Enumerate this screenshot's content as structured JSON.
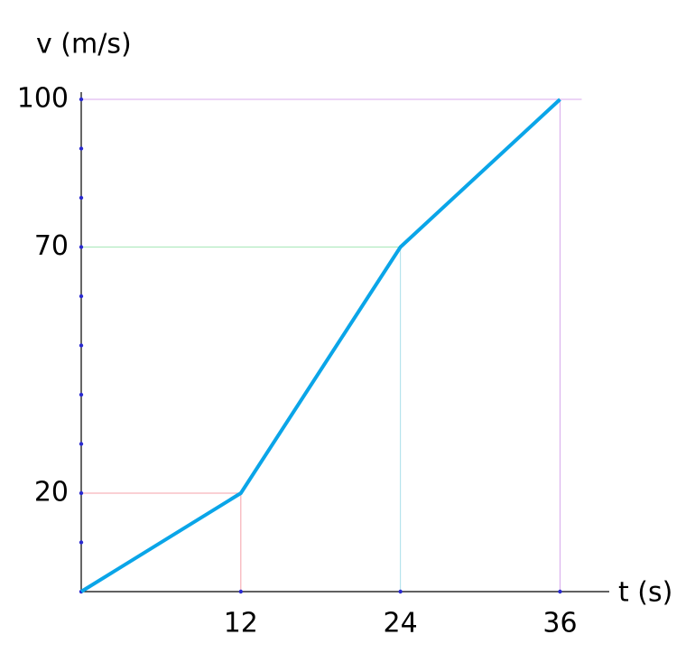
{
  "chart_data": {
    "type": "line",
    "y_label": "v (m/s)",
    "x_label": "t (s)",
    "x": [
      0,
      12,
      24,
      36
    ],
    "series": [
      {
        "values": [
          0,
          20,
          70,
          100
        ],
        "color": "#0aa5e8"
      }
    ],
    "xlim": [
      0,
      39.7
    ],
    "ylim": [
      0,
      100
    ],
    "xticks": [
      12,
      24,
      36
    ],
    "yticks": [
      20,
      70,
      100
    ],
    "y_minor_ticks": [
      10,
      20,
      30,
      40,
      50,
      60,
      70,
      80,
      90,
      100
    ]
  }
}
